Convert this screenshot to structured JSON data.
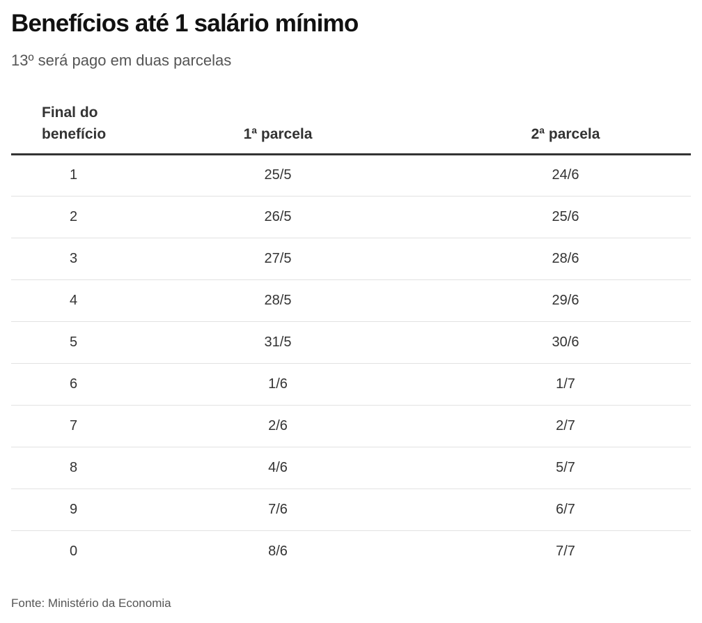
{
  "title": "Benefícios até 1 salário mínimo",
  "subtitle": "13º será pago em duas parcelas",
  "table": {
    "headers": [
      "Final do benefício",
      "1ª parcela",
      "2ª parcela"
    ],
    "rows": [
      [
        "1",
        "25/5",
        "24/6"
      ],
      [
        "2",
        "26/5",
        "25/6"
      ],
      [
        "3",
        "27/5",
        "28/6"
      ],
      [
        "4",
        "28/5",
        "29/6"
      ],
      [
        "5",
        "31/5",
        "30/6"
      ],
      [
        "6",
        "1/6",
        "1/7"
      ],
      [
        "7",
        "2/6",
        "2/7"
      ],
      [
        "8",
        "4/6",
        "5/7"
      ],
      [
        "9",
        "7/6",
        "6/7"
      ],
      [
        "0",
        "8/6",
        "7/7"
      ]
    ]
  },
  "source": "Fonte: Ministério da Economia",
  "colors": {
    "title": "#111111",
    "text": "#333333",
    "muted": "#555555",
    "rule": "#333333",
    "row_divider": "#e2e2e2"
  }
}
